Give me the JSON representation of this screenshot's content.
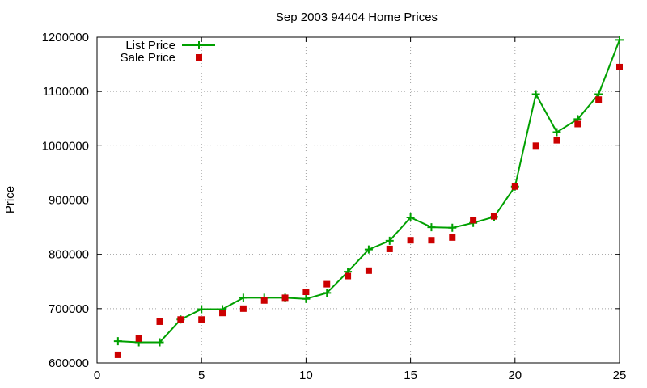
{
  "chart_data": {
    "type": "line",
    "title": "Sep 2003 94404 Home Prices",
    "xlabel": "",
    "ylabel": "Price",
    "xlim": [
      0,
      25
    ],
    "ylim": [
      600000,
      1200000
    ],
    "x_ticks": [
      0,
      5,
      10,
      15,
      20,
      25
    ],
    "y_ticks": [
      600000,
      700000,
      800000,
      900000,
      1000000,
      1100000,
      1200000
    ],
    "grid": true,
    "legend_position": "top-left",
    "series": [
      {
        "name": "List Price",
        "style": "line-plus",
        "color": "#00a000",
        "x": [
          1,
          2,
          3,
          4,
          5,
          6,
          7,
          8,
          9,
          10,
          11,
          12,
          13,
          14,
          15,
          16,
          17,
          18,
          19,
          20,
          21,
          22,
          23,
          24,
          25
        ],
        "y": [
          640000,
          638000,
          638000,
          680000,
          699000,
          699000,
          720000,
          720000,
          720000,
          718000,
          729000,
          768000,
          809000,
          825000,
          868000,
          850000,
          849000,
          858000,
          869000,
          925000,
          1095000,
          1025000,
          1049000,
          1095000,
          1195000
        ]
      },
      {
        "name": "Sale Price",
        "style": "square-points",
        "color": "#cc0000",
        "x": [
          1,
          2,
          3,
          4,
          5,
          6,
          7,
          8,
          9,
          10,
          11,
          12,
          13,
          14,
          15,
          16,
          17,
          18,
          19,
          20,
          21,
          22,
          23,
          24,
          25
        ],
        "y": [
          615000,
          645000,
          676000,
          680000,
          680000,
          692000,
          700000,
          715000,
          720000,
          731000,
          745000,
          760000,
          770000,
          810000,
          826000,
          826000,
          831000,
          863000,
          870000,
          925000,
          1000000,
          1010000,
          1040000,
          1085000,
          1145000
        ]
      }
    ]
  }
}
